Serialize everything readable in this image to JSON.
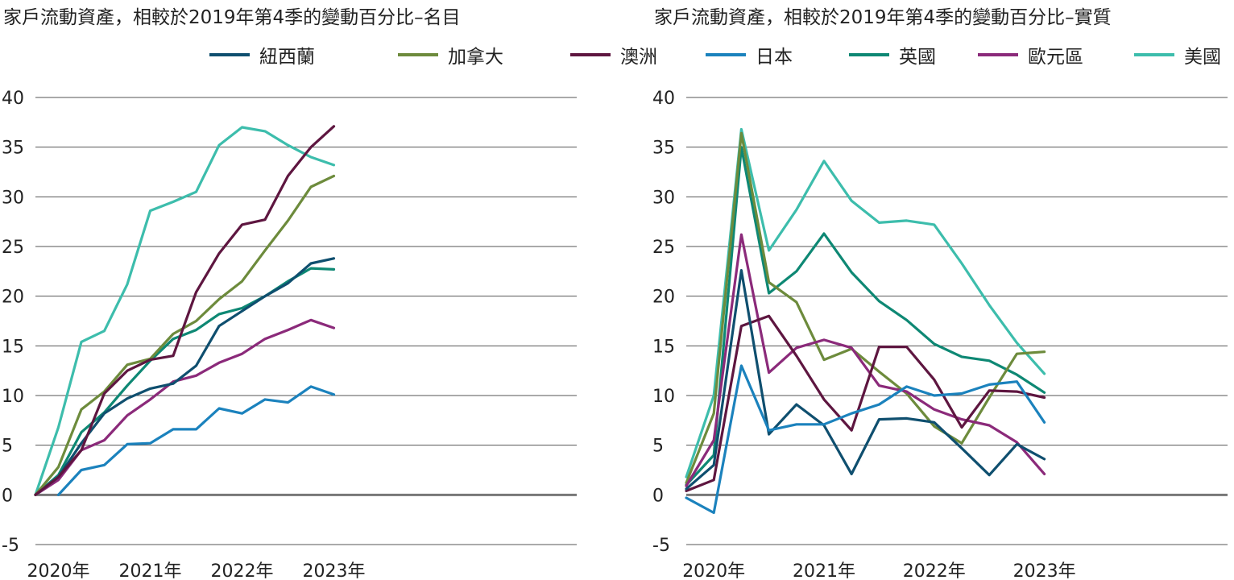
{
  "colors": {
    "紐西蘭": "#0f4f6f",
    "加拿大": "#6d8b3c",
    "澳洲": "#5e1640",
    "日本": "#1b82bd",
    "英國": "#0e8874",
    "歐元區": "#8b2a7a",
    "美國": "#3dbdac",
    "grid": "#555555",
    "zero": "#777777"
  },
  "legend": [
    "紐西蘭",
    "加拿大",
    "澳洲",
    "日本",
    "英國",
    "歐元區",
    "美國"
  ],
  "chart_data": [
    {
      "type": "line",
      "title": "家戶流動資產，相較於2019年第4季的變動百分比–名目",
      "xlabel": "",
      "ylabel": "",
      "ylim": [
        -5,
        40
      ],
      "yticks": [
        -5,
        0,
        5,
        10,
        15,
        20,
        25,
        30,
        35,
        40
      ],
      "xticks": [
        "2020年",
        "2021年",
        "2022年",
        "2023年"
      ],
      "xtick_index": [
        1,
        5,
        9,
        13
      ],
      "x": [
        "2019Q4",
        "2020Q1",
        "2020Q2",
        "2020Q3",
        "2020Q4",
        "2021Q1",
        "2021Q2",
        "2021Q3",
        "2021Q4",
        "2022Q1",
        "2022Q2",
        "2022Q3",
        "2022Q4",
        "2023Q1",
        "2023Q2"
      ],
      "series": [
        {
          "name": "美國",
          "values": [
            0,
            6.8,
            15.4,
            16.5,
            21.2,
            28.6,
            29.5,
            30.5,
            35.2,
            37.0,
            36.6,
            35.2,
            34.0,
            33.2,
            null
          ]
        },
        {
          "name": "日本",
          "values": [
            null,
            0,
            2.5,
            3.0,
            5.1,
            5.2,
            6.6,
            6.6,
            8.7,
            8.2,
            9.6,
            9.3,
            10.9,
            10.1,
            null
          ]
        },
        {
          "name": "歐元區",
          "values": [
            0,
            1.5,
            4.5,
            5.5,
            8.0,
            9.6,
            11.4,
            12.0,
            13.3,
            14.2,
            15.7,
            16.6,
            17.6,
            16.8,
            null
          ]
        },
        {
          "name": "英國",
          "values": [
            0,
            2.0,
            6.3,
            8.3,
            11.0,
            13.5,
            15.7,
            16.6,
            18.2,
            18.8,
            20.0,
            21.5,
            22.8,
            22.7,
            null
          ]
        },
        {
          "name": "紐西蘭",
          "values": [
            0,
            1.8,
            5.2,
            8.2,
            9.7,
            10.7,
            11.2,
            13.0,
            17.0,
            18.5,
            20.0,
            21.3,
            23.3,
            23.8,
            null
          ]
        },
        {
          "name": "加拿大",
          "values": [
            0,
            2.8,
            8.6,
            10.4,
            13.1,
            13.7,
            16.2,
            17.5,
            19.7,
            21.5,
            24.6,
            27.6,
            31.0,
            32.1,
            null
          ]
        },
        {
          "name": "澳洲",
          "values": [
            0,
            1.8,
            4.5,
            10.2,
            12.5,
            13.6,
            14.0,
            20.4,
            24.3,
            27.2,
            27.7,
            32.1,
            35.0,
            37.1,
            null
          ]
        }
      ]
    },
    {
      "type": "line",
      "title": "家戶流動資產，相較於2019年第4季的變動百分比–實質",
      "xlabel": "",
      "ylabel": "",
      "ylim": [
        -5,
        40
      ],
      "yticks": [
        -5,
        0,
        5,
        10,
        15,
        20,
        25,
        30,
        35,
        40
      ],
      "xticks": [
        "2020年",
        "2021年",
        "2022年",
        "2023年"
      ],
      "xtick_index": [
        1,
        5,
        9,
        13
      ],
      "x": [
        "2019Q4",
        "2020Q1",
        "2020Q2",
        "2020Q3",
        "2020Q4",
        "2021Q1",
        "2021Q2",
        "2021Q3",
        "2021Q4",
        "2022Q1",
        "2022Q2",
        "2022Q3",
        "2022Q4",
        "2023Q1",
        "2023Q2"
      ],
      "series": [
        {
          "name": "美國",
          "values": [
            1.8,
            10.0,
            36.8,
            24.6,
            28.7,
            33.6,
            29.6,
            27.4,
            27.6,
            27.2,
            23.3,
            19.1,
            15.3,
            12.2,
            null
          ]
        },
        {
          "name": "英國",
          "values": [
            1.0,
            4.0,
            35.0,
            20.3,
            22.5,
            26.3,
            22.4,
            19.5,
            17.6,
            15.2,
            13.9,
            13.5,
            12.1,
            10.3,
            null
          ]
        },
        {
          "name": "加拿大",
          "values": [
            1.2,
            8.2,
            36.4,
            21.4,
            19.4,
            13.6,
            14.7,
            12.4,
            10.2,
            6.9,
            5.2,
            9.8,
            14.2,
            14.4,
            null
          ]
        },
        {
          "name": "歐元區",
          "values": [
            0.9,
            5.5,
            26.2,
            12.3,
            14.8,
            15.6,
            14.8,
            11.0,
            10.4,
            8.6,
            7.6,
            7.0,
            5.3,
            2.1,
            null
          ]
        },
        {
          "name": "澳洲",
          "values": [
            0.4,
            1.5,
            17.0,
            18.0,
            14.0,
            9.6,
            6.5,
            14.9,
            14.9,
            11.6,
            6.8,
            10.5,
            10.4,
            9.8,
            null
          ]
        },
        {
          "name": "紐西蘭",
          "values": [
            0.6,
            3.0,
            22.6,
            6.1,
            9.1,
            7.0,
            2.1,
            7.6,
            7.7,
            7.3,
            4.7,
            2.0,
            5.1,
            3.6,
            null
          ]
        },
        {
          "name": "日本",
          "values": [
            -0.3,
            -1.8,
            13.0,
            6.5,
            7.1,
            7.1,
            8.2,
            9.1,
            10.9,
            10.0,
            10.2,
            11.1,
            11.4,
            7.3,
            null
          ]
        }
      ]
    }
  ]
}
